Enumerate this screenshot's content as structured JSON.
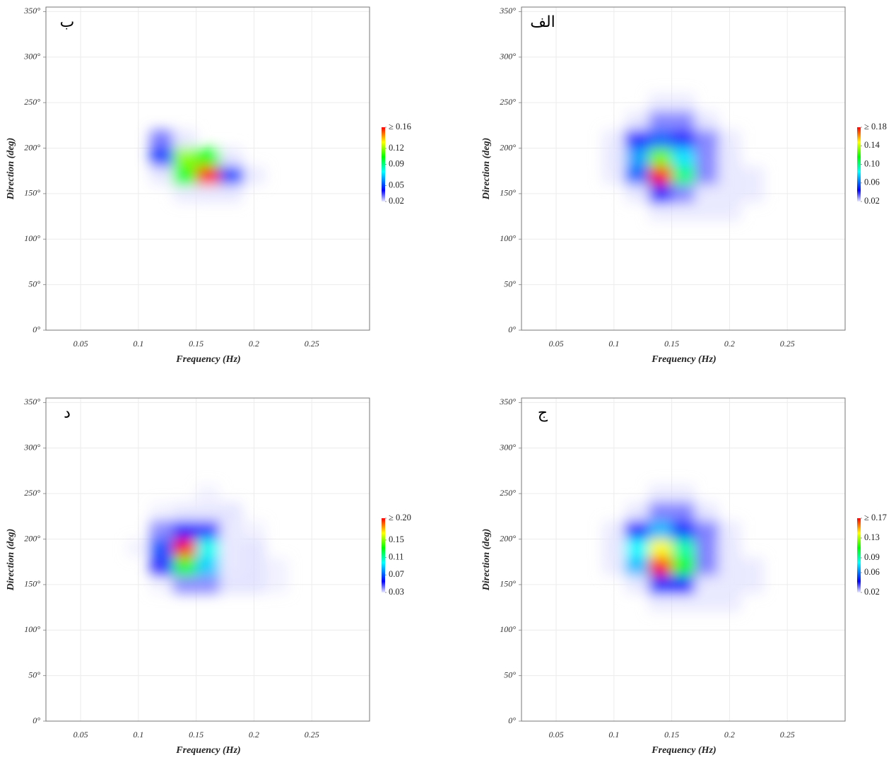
{
  "chart_data": [
    {
      "type": "heatmap",
      "label": "ب",
      "x_label": "Frequency (Hz)",
      "y_label": "Direction (deg)",
      "xlim": [
        0.02,
        0.3
      ],
      "ylim": [
        0,
        355
      ],
      "grid": true,
      "xticks": [
        0.05,
        0.1,
        0.15,
        0.2,
        0.25
      ],
      "yticks": [
        {
          "value": 0,
          "label": "0°"
        },
        {
          "value": 50,
          "label": "50°"
        },
        {
          "value": 100,
          "label": "100°"
        },
        {
          "value": 150,
          "label": "150°"
        },
        {
          "value": 200,
          "label": "200°"
        },
        {
          "value": 250,
          "label": "250°"
        },
        {
          "value": 300,
          "label": "300°"
        },
        {
          "value": 350,
          "label": "350°"
        }
      ],
      "x": [
        0.1,
        0.12,
        0.14,
        0.16,
        0.18,
        0.2,
        0.22
      ],
      "y": [
        250,
        230,
        210,
        190,
        170,
        150,
        130
      ],
      "values": [
        [
          0,
          0,
          0,
          0,
          0,
          0,
          0
        ],
        [
          0,
          0,
          0,
          0,
          0,
          0,
          0
        ],
        [
          0,
          0.03,
          0.02,
          0,
          0,
          0,
          0
        ],
        [
          0,
          0.05,
          0.12,
          0.1,
          0.02,
          0,
          0
        ],
        [
          0,
          0.02,
          0.1,
          0.16,
          0.05,
          0.01,
          0
        ],
        [
          0,
          0,
          0.01,
          0.02,
          0.02,
          0,
          0
        ],
        [
          0,
          0,
          0,
          0,
          0,
          0,
          0
        ]
      ],
      "colorbar_ticks": [
        {
          "value": 0.16,
          "label": "≥ 0.16"
        },
        0.12,
        0.09,
        0.05,
        0.02
      ]
    },
    {
      "type": "heatmap",
      "label": "الف",
      "x_label": "Frequency (Hz)",
      "y_label": "Direction (deg)",
      "xlim": [
        0.02,
        0.3
      ],
      "ylim": [
        0,
        355
      ],
      "grid": true,
      "xticks": [
        0.05,
        0.1,
        0.15,
        0.2,
        0.25
      ],
      "yticks": [
        {
          "value": 0,
          "label": "0°"
        },
        {
          "value": 50,
          "label": "50°"
        },
        {
          "value": 100,
          "label": "100°"
        },
        {
          "value": 150,
          "label": "150°"
        },
        {
          "value": 200,
          "label": "200°"
        },
        {
          "value": 250,
          "label": "250°"
        },
        {
          "value": 300,
          "label": "300°"
        },
        {
          "value": 350,
          "label": "350°"
        }
      ],
      "x": [
        0.1,
        0.12,
        0.14,
        0.16,
        0.18,
        0.2,
        0.22
      ],
      "y": [
        250,
        230,
        210,
        190,
        170,
        150,
        130
      ],
      "values": [
        [
          0,
          0,
          0.01,
          0.01,
          0,
          0,
          0
        ],
        [
          0,
          0.02,
          0.03,
          0.03,
          0.02,
          0,
          0
        ],
        [
          0.01,
          0.04,
          0.06,
          0.04,
          0.03,
          0.01,
          0
        ],
        [
          0.02,
          0.07,
          0.13,
          0.08,
          0.03,
          0.02,
          0
        ],
        [
          0.01,
          0.06,
          0.18,
          0.1,
          0.03,
          0.02,
          0.01
        ],
        [
          0,
          0.02,
          0.04,
          0.03,
          0.02,
          0.02,
          0.01
        ],
        [
          0,
          0,
          0.01,
          0.01,
          0.01,
          0.01,
          0
        ]
      ],
      "colorbar_ticks": [
        {
          "value": 0.18,
          "label": "≥ 0.18"
        },
        0.14,
        {
          "value": 0.1,
          "label": "0.10"
        },
        0.06,
        0.02
      ]
    },
    {
      "type": "heatmap",
      "label": "د",
      "x_label": "Frequency (Hz)",
      "y_label": "Direction (deg)",
      "xlim": [
        0.02,
        0.3
      ],
      "ylim": [
        0,
        355
      ],
      "grid": true,
      "xticks": [
        0.05,
        0.1,
        0.15,
        0.2,
        0.25
      ],
      "yticks": [
        {
          "value": 0,
          "label": "0°"
        },
        {
          "value": 50,
          "label": "50°"
        },
        {
          "value": 100,
          "label": "100°"
        },
        {
          "value": 150,
          "label": "150°"
        },
        {
          "value": 200,
          "label": "200°"
        },
        {
          "value": 250,
          "label": "250°"
        },
        {
          "value": 300,
          "label": "300°"
        },
        {
          "value": 350,
          "label": "350°"
        }
      ],
      "x": [
        0.1,
        0.12,
        0.14,
        0.16,
        0.18,
        0.2,
        0.22
      ],
      "y": [
        250,
        230,
        210,
        190,
        170,
        150,
        130
      ],
      "values": [
        [
          0,
          0,
          0,
          0.01,
          0,
          0,
          0
        ],
        [
          0,
          0.01,
          0.03,
          0.03,
          0.02,
          0,
          0
        ],
        [
          0,
          0.04,
          0.06,
          0.05,
          0.03,
          0.01,
          0
        ],
        [
          0.01,
          0.07,
          0.2,
          0.1,
          0.03,
          0.02,
          0
        ],
        [
          0,
          0.05,
          0.13,
          0.09,
          0.03,
          0.02,
          0.01
        ],
        [
          0,
          0.01,
          0.04,
          0.04,
          0.02,
          0.02,
          0.01
        ],
        [
          0,
          0,
          0,
          0,
          0,
          0,
          0
        ]
      ],
      "colorbar_ticks": [
        {
          "value": 0.2,
          "label": "≥ 0.20"
        },
        0.15,
        0.11,
        0.07,
        0.03
      ]
    },
    {
      "type": "heatmap",
      "label": "ج",
      "x_label": "Frequency (Hz)",
      "y_label": "Direction (deg)",
      "xlim": [
        0.02,
        0.3
      ],
      "ylim": [
        0,
        355
      ],
      "grid": true,
      "xticks": [
        0.05,
        0.1,
        0.15,
        0.2,
        0.25
      ],
      "yticks": [
        {
          "value": 0,
          "label": "0°"
        },
        {
          "value": 50,
          "label": "50°"
        },
        {
          "value": 100,
          "label": "100°"
        },
        {
          "value": 150,
          "label": "150°"
        },
        {
          "value": 200,
          "label": "200°"
        },
        {
          "value": 250,
          "label": "250°"
        },
        {
          "value": 300,
          "label": "300°"
        },
        {
          "value": 350,
          "label": "350°"
        }
      ],
      "x": [
        0.1,
        0.12,
        0.14,
        0.16,
        0.18,
        0.2,
        0.22
      ],
      "y": [
        250,
        230,
        210,
        190,
        170,
        150,
        130
      ],
      "values": [
        [
          0,
          0,
          0.01,
          0.01,
          0,
          0,
          0
        ],
        [
          0,
          0.02,
          0.03,
          0.03,
          0.02,
          0,
          0
        ],
        [
          0.01,
          0.04,
          0.07,
          0.05,
          0.03,
          0.01,
          0
        ],
        [
          0.02,
          0.08,
          0.14,
          0.09,
          0.03,
          0.02,
          0
        ],
        [
          0.01,
          0.07,
          0.17,
          0.11,
          0.03,
          0.02,
          0.01
        ],
        [
          0,
          0.02,
          0.05,
          0.04,
          0.02,
          0.02,
          0.01
        ],
        [
          0,
          0,
          0.01,
          0.01,
          0.01,
          0.01,
          0
        ]
      ],
      "colorbar_ticks": [
        {
          "value": 0.17,
          "label": "≥ 0.17"
        },
        0.13,
        0.09,
        0.06,
        0.02
      ]
    }
  ]
}
